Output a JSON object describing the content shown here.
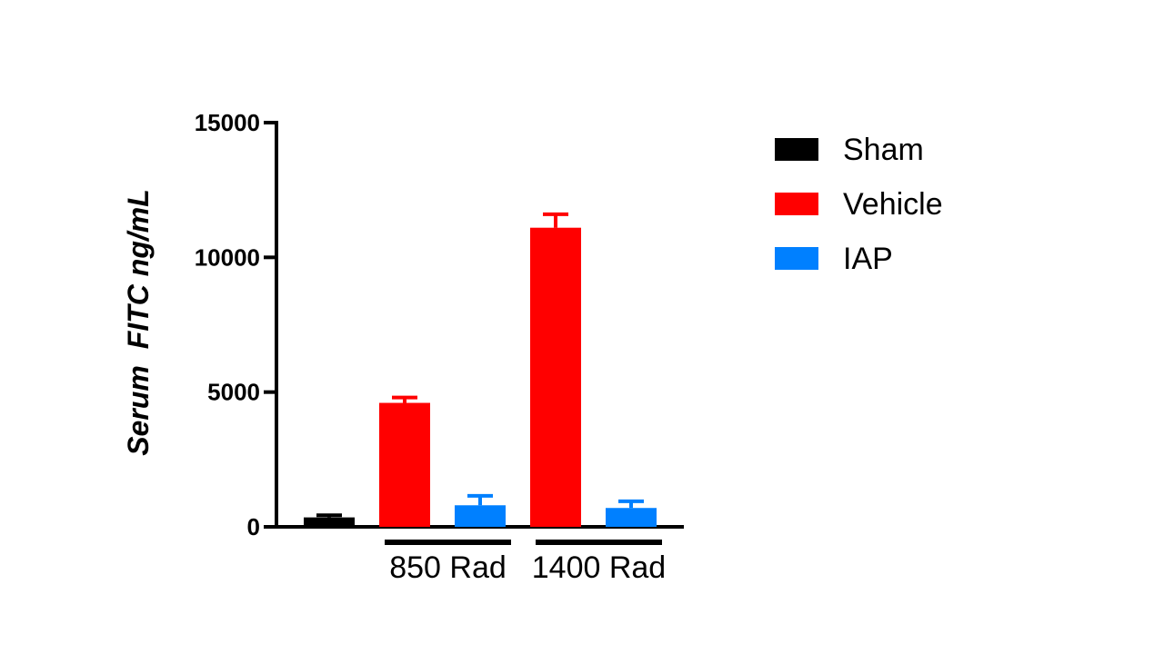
{
  "chart_data": {
    "type": "bar",
    "ylabel_parts": [
      "Serum",
      "FITC ng/mL"
    ],
    "ylim": [
      0,
      15000
    ],
    "yticks": [
      0,
      5000,
      10000,
      15000
    ],
    "ytick_labels": [
      "0",
      "5000",
      "10000",
      "15000"
    ],
    "grid": false,
    "legend_position": "right",
    "legend": [
      {
        "name": "Sham",
        "color": "#000000"
      },
      {
        "name": "Vehicle",
        "color": "#ff0000"
      },
      {
        "name": "IAP",
        "color": "#0080ff"
      }
    ],
    "groups": [
      {
        "label": "",
        "bars": [
          {
            "series": "Sham",
            "value": 350,
            "error": 80
          }
        ]
      },
      {
        "label": "850 Rad",
        "bars": [
          {
            "series": "Vehicle",
            "value": 4600,
            "error": 200
          },
          {
            "series": "IAP",
            "value": 800,
            "error": 350
          }
        ]
      },
      {
        "label": "1400 Rad",
        "bars": [
          {
            "series": "Vehicle",
            "value": 11100,
            "error": 500
          },
          {
            "series": "IAP",
            "value": 700,
            "error": 250
          }
        ]
      }
    ]
  }
}
